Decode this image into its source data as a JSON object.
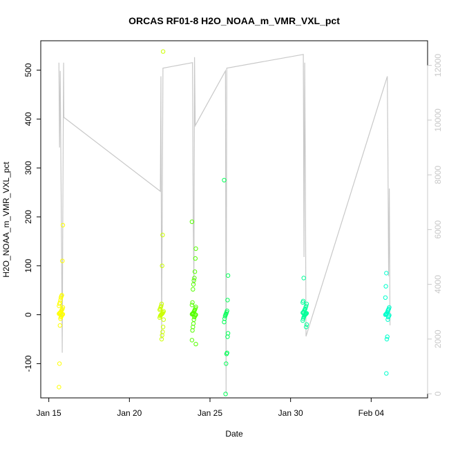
{
  "chart_data": {
    "type": "scatter",
    "title": "ORCAS RF01-8 H2O_NOAA_m_VMR_VXL_pct",
    "xlabel": "Date",
    "ylabel": "H2O_NOAA_m_VMR_VXL_pct",
    "x_axis": {
      "type": "date",
      "range": [
        "2016-01-14T12:00",
        "2016-02-07T12:00"
      ],
      "ticks": [
        {
          "value": "2016-01-15",
          "label": "Jan 15"
        },
        {
          "value": "2016-01-20",
          "label": "Jan 20"
        },
        {
          "value": "2016-01-25",
          "label": "Jan 25"
        },
        {
          "value": "2016-01-30",
          "label": "Jan 30"
        },
        {
          "value": "2016-02-04",
          "label": "Feb 04"
        }
      ]
    },
    "y_left": {
      "range": [
        -170,
        560
      ],
      "ticks": [
        -100,
        0,
        100,
        200,
        300,
        400,
        500
      ],
      "tick_labels": [
        "-100",
        "0",
        "100",
        "200",
        "300",
        "400",
        "500"
      ]
    },
    "y_right": {
      "range": [
        -150,
        12900
      ],
      "ticks": [
        0,
        2000,
        4000,
        6000,
        8000,
        10000,
        12000
      ],
      "tick_labels": [
        "0",
        "2000",
        "4000",
        "6000",
        "8000",
        "10000",
        "12000"
      ],
      "color": "#c8c8c8"
    },
    "altitude_trace": {
      "axis": "right",
      "color": "#c8c8c8",
      "points": [
        [
          "2016-01-15T15:00",
          12100
        ],
        [
          "2016-01-15T16:00",
          9000
        ],
        [
          "2016-01-15T17:00",
          11800
        ],
        [
          "2016-01-15T18:00",
          8300
        ],
        [
          "2016-01-15T19:00",
          5500
        ],
        [
          "2016-01-15T20:00",
          1500
        ],
        [
          "2016-01-15T21:00",
          7500
        ],
        [
          "2016-01-15T22:00",
          12100
        ],
        [
          "2016-01-15T22:30",
          10100
        ],
        [
          "2016-01-21T22:00",
          7400
        ],
        [
          "2016-01-21T23:00",
          11600
        ],
        [
          "2016-01-22T00:00",
          2000
        ],
        [
          "2016-01-22T01:00",
          7100
        ],
        [
          "2016-01-22T02:00",
          11900
        ],
        [
          "2016-01-23T22:00",
          12100
        ],
        [
          "2016-01-23T23:00",
          6400
        ],
        [
          "2016-01-24T00:00",
          4000
        ],
        [
          "2016-01-24T01:00",
          12300
        ],
        [
          "2016-01-24T02:00",
          9800
        ],
        [
          "2016-01-25T23:00",
          11800
        ],
        [
          "2016-01-26T00:00",
          0
        ],
        [
          "2016-01-26T01:00",
          11900
        ],
        [
          "2016-01-30T19:00",
          12400
        ],
        [
          "2016-01-30T20:00",
          5000
        ],
        [
          "2016-01-30T21:00",
          12100
        ],
        [
          "2016-01-30T22:00",
          8000
        ],
        [
          "2016-01-30T23:00",
          2100
        ],
        [
          "2016-02-05T00:00",
          11600
        ],
        [
          "2016-02-05T01:00",
          8600
        ],
        [
          "2016-02-05T02:00",
          4300
        ],
        [
          "2016-02-05T03:00",
          7500
        ],
        [
          "2016-02-05T04:00",
          2500
        ]
      ]
    },
    "flights": [
      {
        "date": "2016-01-15T18:00",
        "color": "#ffff00",
        "values": [
          -148,
          -100,
          -22,
          -8,
          -5,
          -3,
          -1,
          0,
          1,
          2,
          3,
          4,
          5,
          6,
          8,
          10,
          12,
          15,
          18,
          22,
          25,
          30,
          35,
          38,
          40,
          110,
          183
        ]
      },
      {
        "date": "2016-01-22T00:00",
        "color": "#ccff00",
        "values": [
          -50,
          -42,
          -35,
          -25,
          -10,
          -6,
          -3,
          -1,
          0,
          1,
          2,
          3,
          5,
          7,
          10,
          12,
          15,
          18,
          22,
          100,
          163,
          538
        ]
      },
      {
        "date": "2016-01-24T00:00",
        "color": "#55ff00",
        "values": [
          -60,
          -52,
          -32,
          -25,
          -18,
          -10,
          -5,
          -3,
          -1,
          0,
          1,
          2,
          3,
          4,
          6,
          8,
          10,
          13,
          16,
          20,
          25,
          52,
          62,
          70,
          75,
          88,
          115,
          135,
          190
        ]
      },
      {
        "date": "2016-01-26T00:00",
        "color": "#00ff55",
        "values": [
          -162,
          -100,
          -80,
          -78,
          -45,
          -38,
          -15,
          -8,
          -3,
          0,
          2,
          5,
          8,
          30,
          80,
          275
        ]
      },
      {
        "date": "2016-01-30T21:00",
        "color": "#00ff99",
        "values": [
          -25,
          -20,
          -12,
          -8,
          -5,
          -3,
          -1,
          0,
          1,
          2,
          3,
          4,
          5,
          6,
          8,
          10,
          12,
          15,
          18,
          22,
          25,
          28,
          75
        ]
      },
      {
        "date": "2016-02-05T00:00",
        "color": "#00ffcc",
        "values": [
          -120,
          -50,
          -45,
          -10,
          -5,
          -3,
          -1,
          0,
          1,
          2,
          3,
          5,
          8,
          10,
          12,
          15,
          35,
          58,
          85
        ]
      }
    ],
    "grid": false,
    "legend": "none"
  }
}
